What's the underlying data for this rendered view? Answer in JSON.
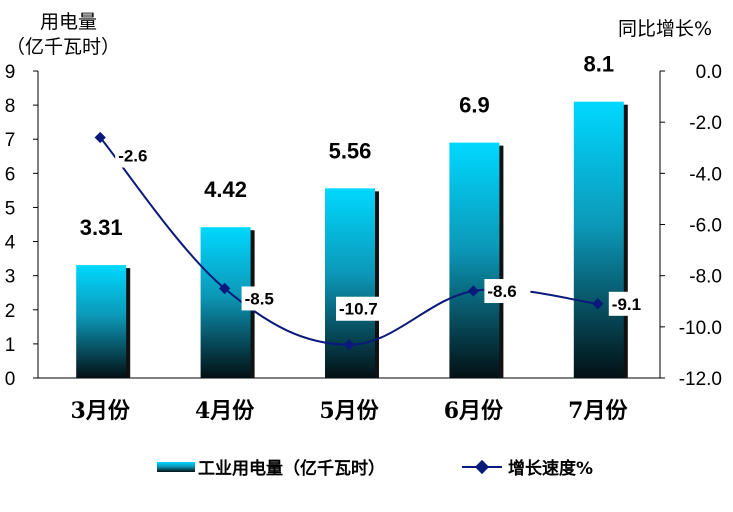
{
  "chart_data": {
    "type": "bar",
    "categories": [
      "3月份",
      "4月份",
      "5月份",
      "6月份",
      "7月份"
    ],
    "series": [
      {
        "name": "工业用电量（亿千瓦时）",
        "type": "bar",
        "axis": "left",
        "values": [
          3.31,
          4.42,
          5.56,
          6.9,
          8.1
        ],
        "labels": [
          "3.31",
          "4.42",
          "5.56",
          "6.9",
          "8.1"
        ]
      },
      {
        "name": "增长速度%",
        "type": "line",
        "axis": "right",
        "values": [
          -2.6,
          -8.5,
          -10.7,
          -8.6,
          -9.1
        ],
        "labels": [
          "-2.6",
          "-8.5",
          "-10.7",
          "-8.6",
          "-9.1"
        ]
      }
    ],
    "ylabel_left": [
      "用电量",
      "（亿千瓦时）"
    ],
    "ylabel_right": "同比增长%",
    "ylim_left": [
      0,
      9
    ],
    "ylim_right": [
      -12,
      0
    ],
    "yticks_left": [
      "0",
      "1",
      "2",
      "3",
      "4",
      "5",
      "6",
      "7",
      "8",
      "9"
    ],
    "yticks_right": [
      "0.0",
      "-2.0",
      "-4.0",
      "-6.0",
      "-8.0",
      "-10.0",
      "-12.0"
    ],
    "grid": false,
    "legend": "bottom",
    "colors": {
      "bar_top": "#00d8ff",
      "bar_bottom": "#031014",
      "line": "#0a1a7a",
      "axis": "#000000"
    }
  }
}
